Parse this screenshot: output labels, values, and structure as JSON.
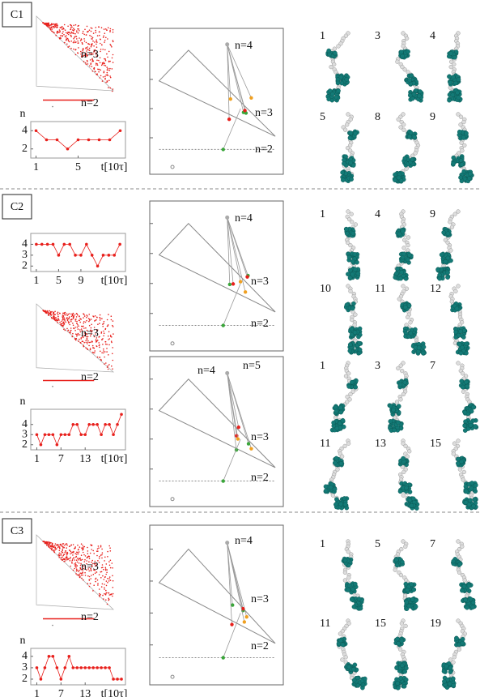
{
  "panels": [
    {
      "label": "C1",
      "simplex_labels": [
        "n=3",
        "n=2"
      ],
      "networks": [
        [
          "n=4",
          "n=3",
          "n=2"
        ]
      ],
      "snapshots": [
        "1",
        "3",
        "4",
        "5",
        "8",
        "9"
      ]
    },
    {
      "label": "C2",
      "simplex_labels": [
        "n=3",
        "n=2"
      ],
      "networks": [
        [
          "n=4",
          "n=3",
          "n=2"
        ],
        [
          "n=4",
          "n=5",
          "n=3",
          "n=2"
        ]
      ],
      "snapshots": [
        "1",
        "4",
        "9",
        "10",
        "11",
        "12",
        "1",
        "3",
        "7",
        "11",
        "13",
        "15"
      ]
    },
    {
      "label": "C3",
      "simplex_labels": [
        "n=3",
        "n=2"
      ],
      "networks": [
        [
          "n=4",
          "n=3",
          "n=2"
        ]
      ],
      "snapshots": [
        "1",
        "5",
        "7",
        "11",
        "15",
        "19"
      ]
    }
  ],
  "chart_data": [
    {
      "type": "line",
      "y_label": "n",
      "x_label": "t[10τ]",
      "x": [
        1,
        2,
        3,
        4,
        5,
        6,
        7,
        8,
        9
      ],
      "values": [
        4,
        3,
        3,
        2,
        3,
        3,
        3,
        3,
        4
      ],
      "color": "#e8201c",
      "xlim": [
        0.5,
        9.5
      ],
      "ylim": [
        1,
        5
      ],
      "xticks": [
        1,
        5
      ],
      "yticks": [
        2,
        4
      ]
    },
    {
      "type": "line",
      "x_label": "t[10τ]",
      "x": [
        1,
        2,
        3,
        4,
        5,
        6,
        7,
        8,
        9,
        10,
        11,
        12,
        13,
        14,
        15,
        16
      ],
      "values": [
        4,
        4,
        4,
        4,
        3,
        4,
        4,
        3,
        3,
        4,
        3,
        2,
        3,
        3,
        3,
        4
      ],
      "color": "#e8201c",
      "xlim": [
        0,
        17
      ],
      "ylim": [
        1.5,
        5
      ],
      "xticks": [
        1,
        5,
        9
      ],
      "yticks": [
        2,
        3,
        4
      ]
    },
    {
      "type": "line",
      "y_label": "n",
      "x_label": "t[10τ]",
      "x": [
        1,
        2,
        3,
        4,
        5,
        6,
        7,
        8,
        9,
        10,
        11,
        12,
        13,
        14,
        15,
        16,
        17,
        18,
        19,
        20,
        21,
        22
      ],
      "values": [
        3,
        2,
        3,
        3,
        3,
        2,
        3,
        3,
        3,
        4,
        4,
        3,
        3,
        4,
        4,
        4,
        3,
        4,
        4,
        3,
        4,
        5
      ],
      "color": "#e8201c",
      "xlim": [
        -0.5,
        23
      ],
      "ylim": [
        1.5,
        5.5
      ],
      "xticks": [
        1,
        7,
        13
      ],
      "yticks": [
        2,
        3,
        4
      ]
    },
    {
      "type": "line",
      "y_label": "n",
      "x_label": "t[10τ]",
      "x": [
        1,
        2,
        3,
        4,
        5,
        6,
        7,
        8,
        9,
        10,
        11,
        12,
        13,
        14,
        15,
        16,
        17,
        18,
        19,
        20,
        21,
        22
      ],
      "values": [
        3,
        2,
        3,
        4,
        4,
        3,
        2,
        3,
        4,
        3,
        3,
        3,
        3,
        3,
        3,
        3,
        3,
        3,
        3,
        2,
        2,
        2
      ],
      "color": "#e8201c",
      "xlim": [
        -0.5,
        23
      ],
      "ylim": [
        1.5,
        4.7
      ],
      "xticks": [
        1,
        7,
        13
      ],
      "yticks": [
        2,
        3,
        4
      ]
    }
  ]
}
